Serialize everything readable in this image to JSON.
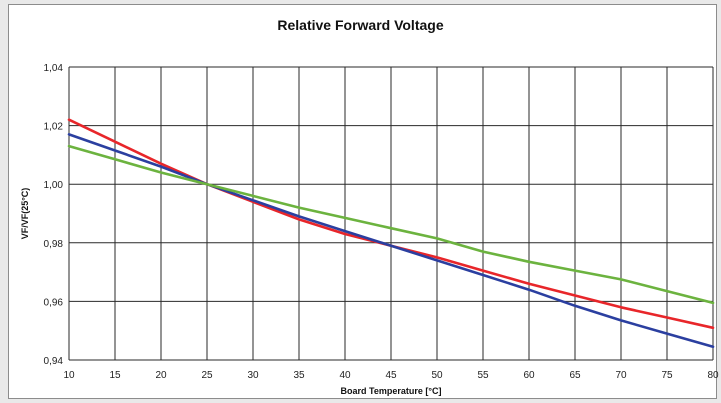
{
  "chart_data": {
    "type": "line",
    "title": "Relative Forward Voltage",
    "xlabel": "Board Temperature [°C]",
    "ylabel": "VF/VF(25°C)",
    "xlim": [
      10,
      80
    ],
    "ylim": [
      0.94,
      1.04
    ],
    "x_ticks": [
      "10",
      "15",
      "20",
      "25",
      "30",
      "35",
      "40",
      "45",
      "50",
      "55",
      "60",
      "65",
      "70",
      "75",
      "80"
    ],
    "y_ticks": [
      "0,94",
      "0,96",
      "0,98",
      "1,00",
      "1,02",
      "1,04"
    ],
    "grid": true,
    "series": [
      {
        "color": "#e8262a",
        "x": [
          10,
          15,
          20,
          25,
          30,
          35,
          40,
          45,
          50,
          55,
          60,
          65,
          70,
          75,
          80
        ],
        "y": [
          1.022,
          1.0145,
          1.007,
          1.0,
          0.994,
          0.988,
          0.983,
          0.979,
          0.975,
          0.9705,
          0.966,
          0.962,
          0.958,
          0.9545,
          0.951
        ]
      },
      {
        "color": "#2b3fa0",
        "x": [
          10,
          15,
          20,
          25,
          30,
          35,
          40,
          45,
          50,
          55,
          60,
          65,
          70,
          75,
          80
        ],
        "y": [
          1.017,
          1.0115,
          1.006,
          1.0,
          0.9945,
          0.989,
          0.984,
          0.979,
          0.974,
          0.969,
          0.964,
          0.9585,
          0.9535,
          0.949,
          0.9445
        ]
      },
      {
        "color": "#6cb33f",
        "x": [
          10,
          15,
          20,
          25,
          30,
          35,
          40,
          45,
          50,
          55,
          60,
          65,
          70,
          75,
          80
        ],
        "y": [
          1.013,
          1.0085,
          1.004,
          1.0,
          0.996,
          0.992,
          0.9885,
          0.985,
          0.9815,
          0.977,
          0.9735,
          0.9705,
          0.9675,
          0.9635,
          0.9595
        ]
      }
    ]
  }
}
